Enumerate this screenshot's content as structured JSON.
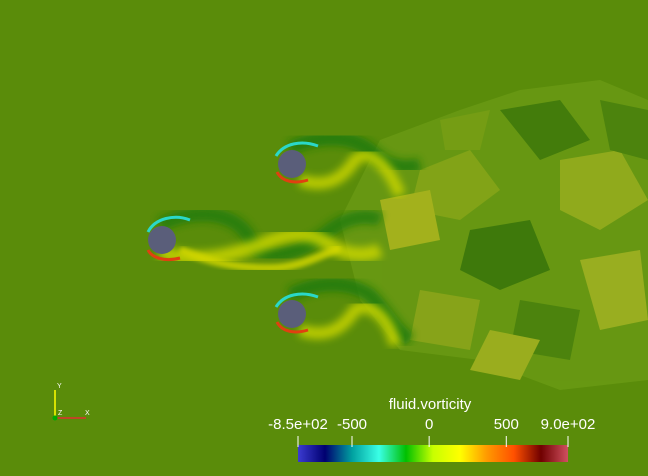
{
  "scalar_bar": {
    "title": "fluid.vorticity",
    "range": [
      -850,
      900
    ],
    "ticks": [
      {
        "value": -850,
        "label": "-8.5e+02"
      },
      {
        "value": -500,
        "label": "-500"
      },
      {
        "value": 0,
        "label": "0"
      },
      {
        "value": 500,
        "label": "500"
      },
      {
        "value": 900,
        "label": "9.0e+02"
      }
    ],
    "colormap": [
      "#3b3bd1",
      "#000070",
      "#00a0a0",
      "#3affe6",
      "#00c000",
      "#c8ff00",
      "#ffff00",
      "#ff9900",
      "#ff5000",
      "#700000",
      "#d05060"
    ]
  },
  "orientation_axes": {
    "x": "X",
    "y": "Y",
    "z": "Z"
  },
  "colors": {
    "background": "#5a8c0a",
    "cylinder": "#5a5e7a",
    "positive_wake": "#c8d400",
    "negative_wake": "#1f7a0a"
  }
}
